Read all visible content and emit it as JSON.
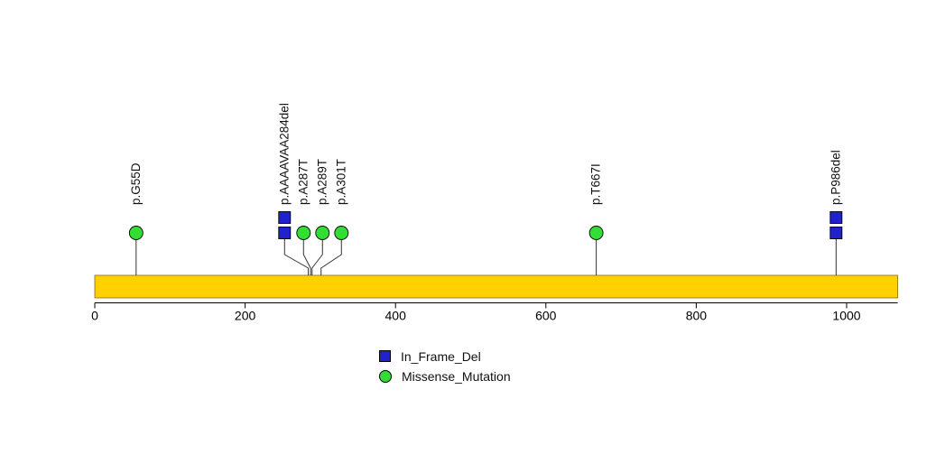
{
  "chart_data": {
    "type": "lollipop",
    "title": "",
    "xlabel": "",
    "axis": {
      "min": 0,
      "max": 1068,
      "ticks": [
        0,
        200,
        400,
        600,
        800,
        1000
      ]
    },
    "mutations": [
      {
        "label": "p.G55D",
        "position": 55,
        "type": "Missense_Mutation",
        "count": 1
      },
      {
        "label": "p.AAAAVAA284del",
        "position": 284,
        "type": "In_Frame_Del",
        "count": 2
      },
      {
        "label": "p.A287T",
        "position": 287,
        "type": "Missense_Mutation",
        "count": 1
      },
      {
        "label": "p.A289T",
        "position": 289,
        "type": "Missense_Mutation",
        "count": 1
      },
      {
        "label": "p.A301T",
        "position": 301,
        "type": "Missense_Mutation",
        "count": 1
      },
      {
        "label": "p.T667I",
        "position": 667,
        "type": "Missense_Mutation",
        "count": 1
      },
      {
        "label": "p.P986del",
        "position": 986,
        "type": "In_Frame_Del",
        "count": 2
      }
    ],
    "legend": [
      {
        "label": "In_Frame_Del",
        "shape": "square",
        "color": "#2222CC"
      },
      {
        "label": "Missense_Mutation",
        "shape": "circle",
        "color": "#33DD33"
      }
    ],
    "colors": {
      "backbone": "#FFD100",
      "backbone_border": "#8a6d00",
      "stem": "#333333",
      "axis": "#000000"
    }
  }
}
